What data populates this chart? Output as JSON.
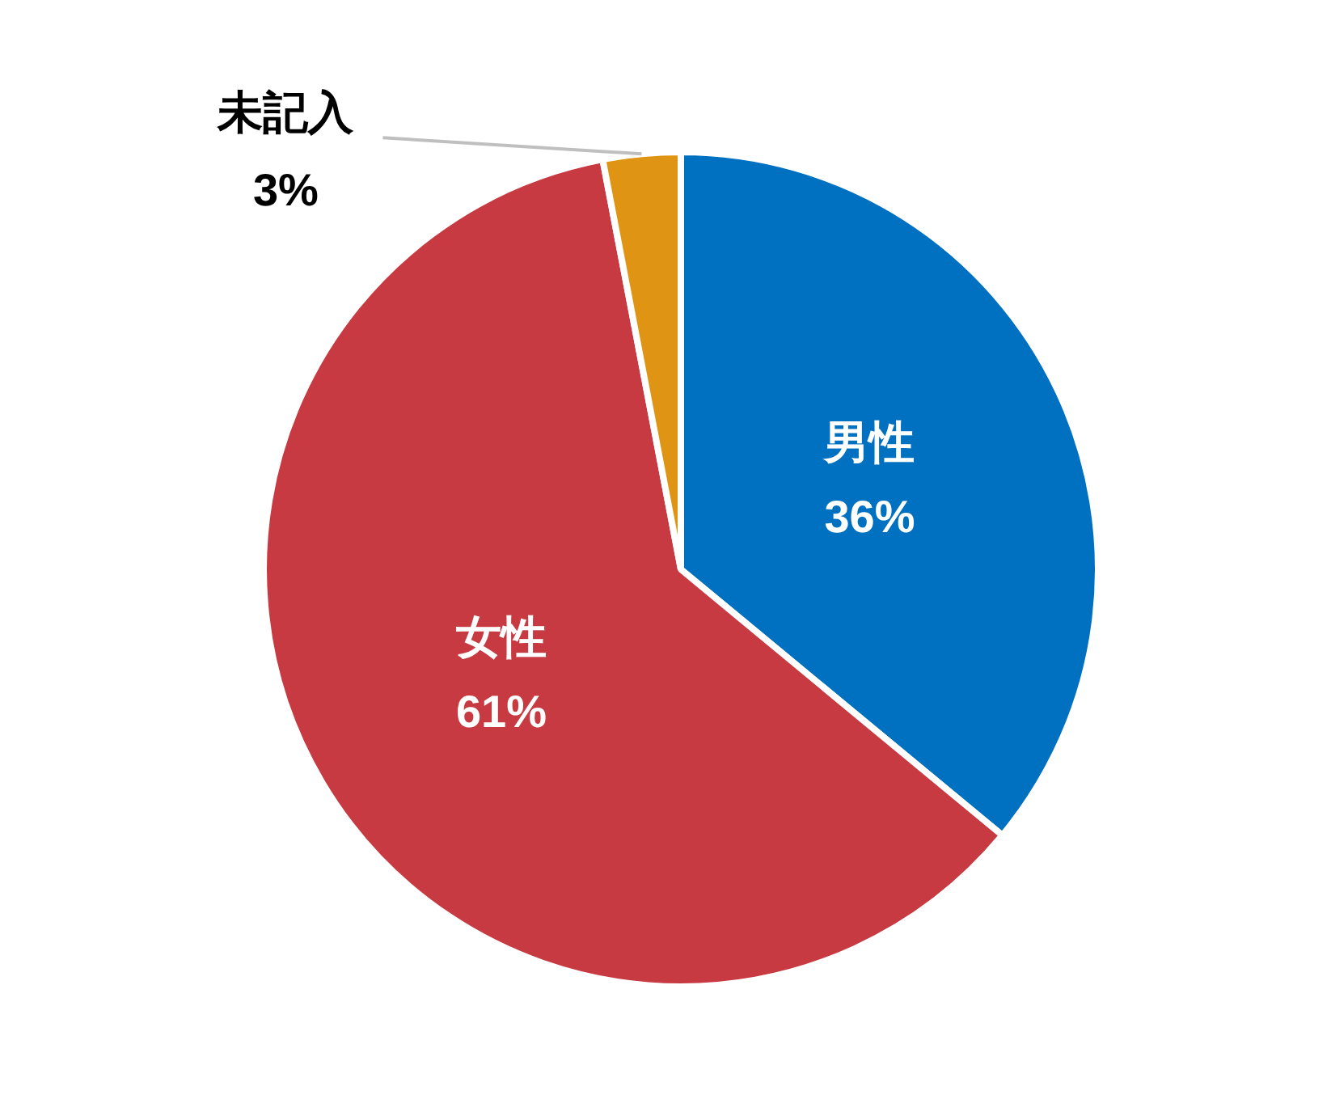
{
  "chart_data": {
    "type": "pie",
    "categories": [
      "男性",
      "女性",
      "未記入"
    ],
    "values": [
      36,
      61,
      3
    ],
    "colors": [
      "#0070c0",
      "#c83a41",
      "#e09414"
    ],
    "value_labels": [
      "36%",
      "61%",
      "3%"
    ],
    "legend": false
  }
}
